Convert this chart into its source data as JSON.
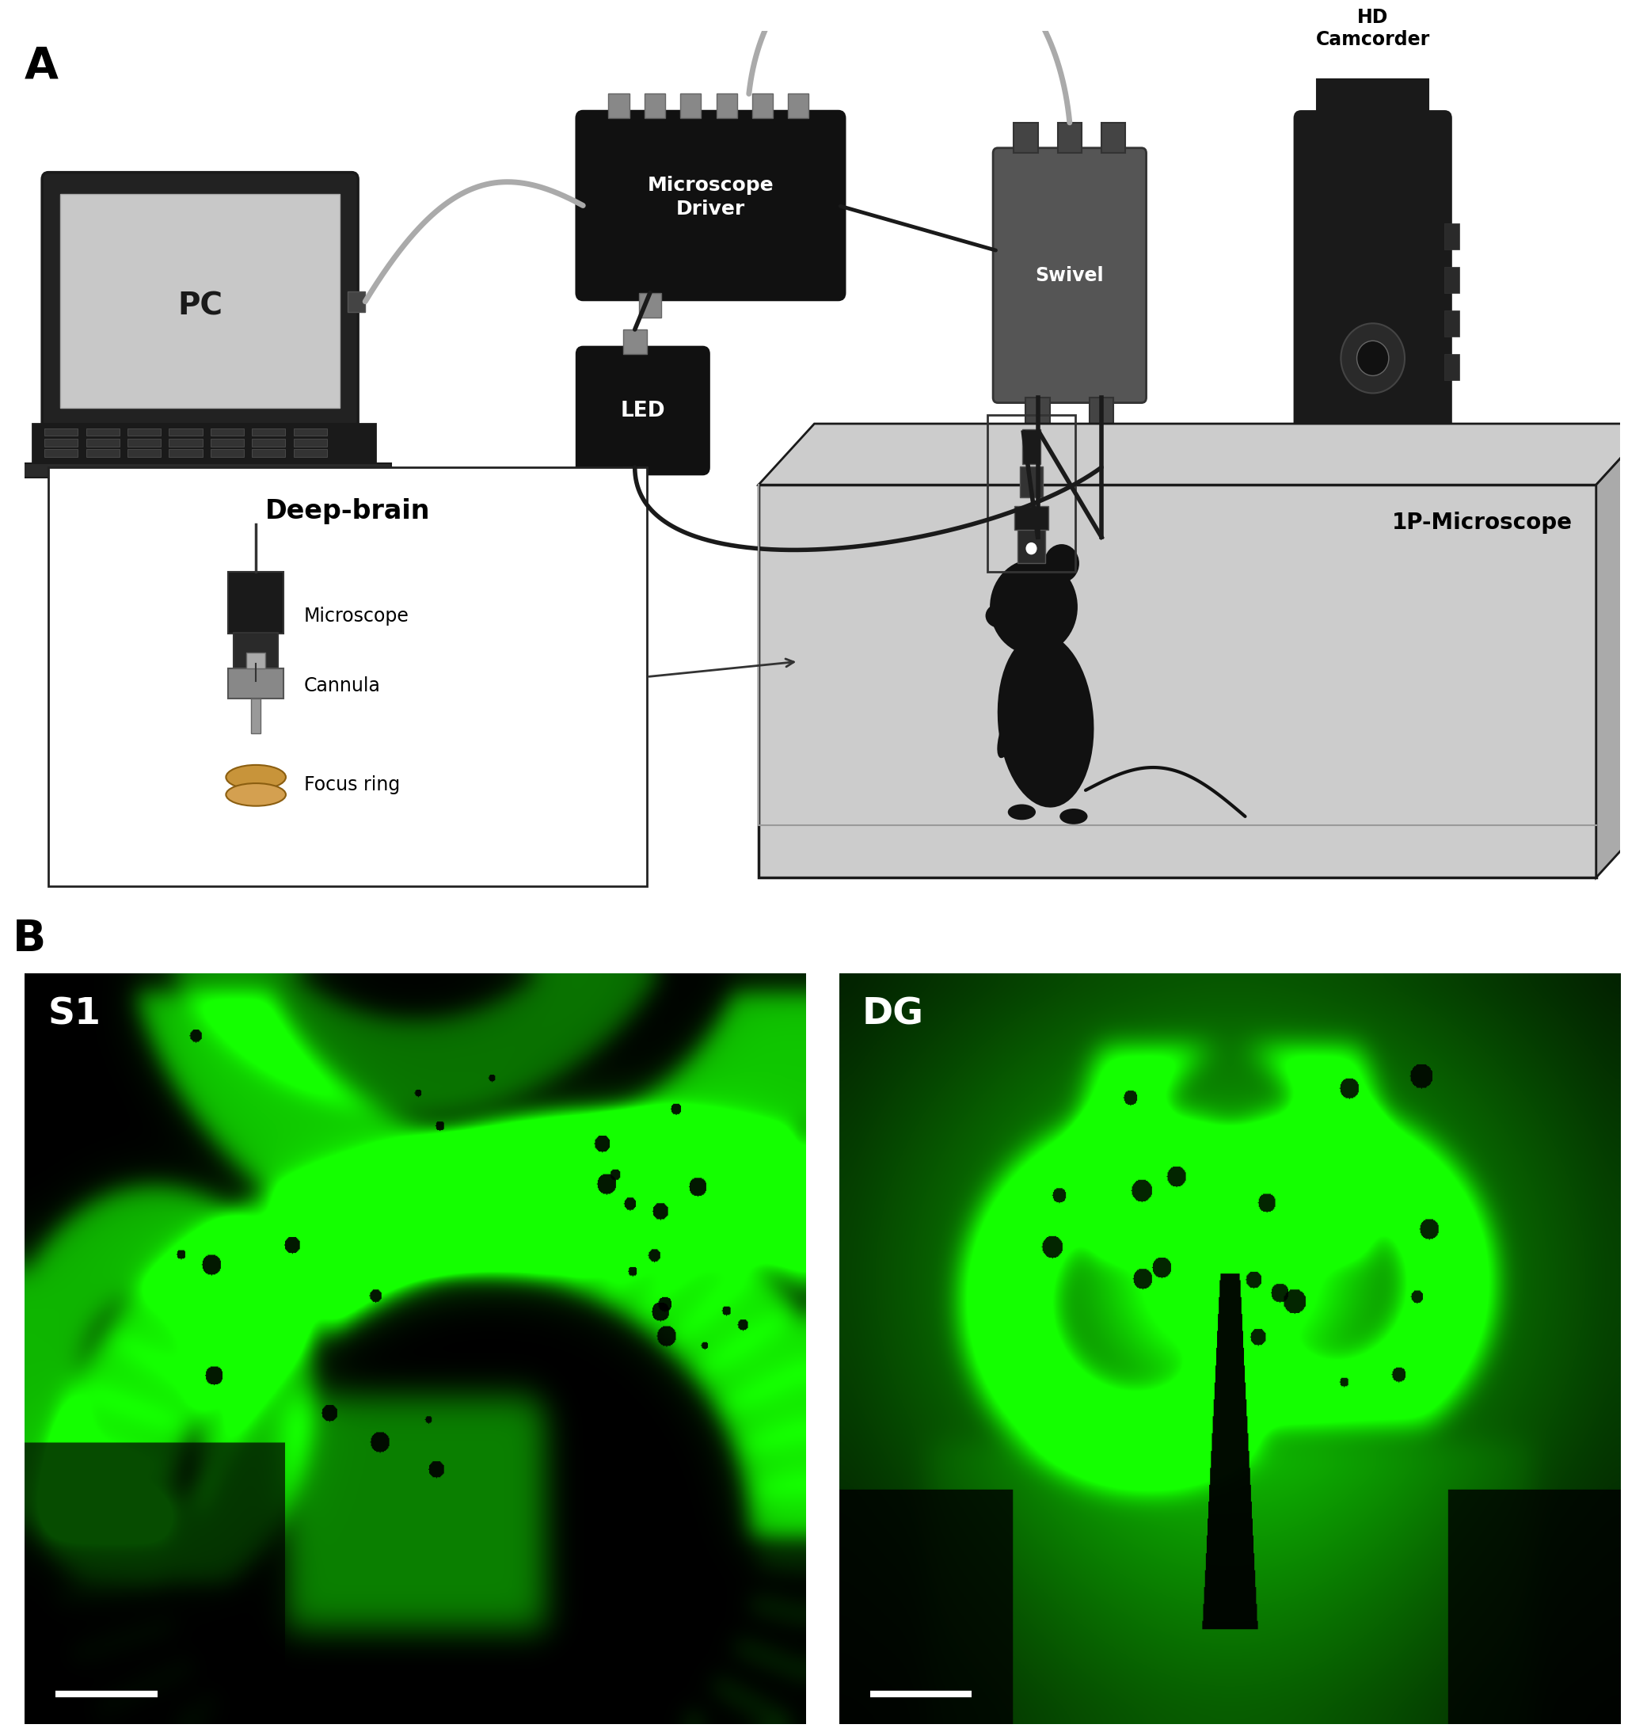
{
  "panel_A_label": "A",
  "panel_B_label": "B",
  "s1_label": "S1",
  "dg_label": "DG",
  "microscope_driver_label": "Microscope\nDriver",
  "led_label": "LED",
  "swivel_label": "Swivel",
  "hd_camcorder_label": "HD\nCamcorder",
  "pc_label": "PC",
  "microscope_1p_label": "1P-Microscope",
  "deep_brain_label": "Deep-brain",
  "microscope_component_label": "Microscope",
  "cannula_label": "Cannula",
  "focus_ring_label": "Focus ring",
  "bg_color": "#ffffff"
}
